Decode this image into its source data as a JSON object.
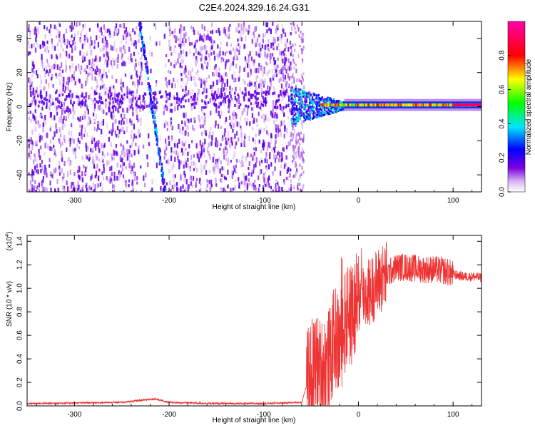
{
  "figure": {
    "title": "C2E4.2024.329.16.24.G31"
  },
  "chart_data": [
    {
      "type": "heatmap",
      "xlabel": "Height of straight line (km)",
      "ylabel": "Frequency (Hz)",
      "xlim": [
        -350,
        130
      ],
      "ylim": [
        -50,
        50
      ],
      "xticks": [
        -300,
        -200,
        -100,
        0,
        100
      ],
      "yticks": [
        -40,
        -20,
        0,
        20,
        40
      ],
      "colorbar": {
        "label": "Normalized spectral amplitude",
        "range": [
          0,
          1
        ],
        "ticks": [
          "0.0",
          "0.2",
          "0.4",
          "0.6",
          "0.8"
        ],
        "colors": [
          "#ffffff",
          "#7b00e0",
          "#0000ff",
          "#00e5ff",
          "#00ff00",
          "#ffff00",
          "#ff0000",
          "#ff00aa"
        ]
      },
      "features": [
        {
          "x_range": [
            -350,
            -72
          ],
          "y_range": [
            -50,
            50
          ],
          "amplitude": 0.15
        },
        {
          "x_range": [
            -72,
            130
          ],
          "y_center": 1,
          "amplitude": 0.9
        },
        {
          "x_range": [
            -235,
            -205
          ],
          "y_range": [
            50,
            -50
          ],
          "amplitude": 0.35
        }
      ]
    },
    {
      "type": "line",
      "xlabel": "Height of straight line (km)",
      "ylabel": "SNR (10 * v/v)",
      "y_multiplier": "(x10",
      "y_multiplier_exp": "4",
      "xlim": [
        -350,
        130
      ],
      "ylim": [
        0,
        1.45
      ],
      "xticks": [
        -300,
        -200,
        -100,
        0,
        100
      ],
      "yticks": [
        "0.0",
        "0.2",
        "0.4",
        "0.6",
        "0.8",
        "1.0",
        "1.2",
        "1.4"
      ],
      "series": [
        {
          "color": "#ee3333",
          "x": [
            -350,
            -300,
            -250,
            -215,
            -200,
            -150,
            -100,
            -60,
            -50,
            -45,
            -40,
            -35,
            -30,
            -25,
            -20,
            -15,
            -10,
            -5,
            0,
            5,
            10,
            20,
            30,
            40,
            50,
            60,
            70,
            80,
            90,
            100,
            110,
            120,
            130
          ],
          "y": [
            0.02,
            0.025,
            0.03,
            0.06,
            0.03,
            0.02,
            0.02,
            0.03,
            0.3,
            0.35,
            0.3,
            0.35,
            0.4,
            0.6,
            0.5,
            0.7,
            0.75,
            0.8,
            0.9,
            0.95,
            0.95,
            1.05,
            1.12,
            1.18,
            1.18,
            1.17,
            1.16,
            1.16,
            1.15,
            1.12,
            1.1,
            1.1,
            1.09
          ]
        }
      ]
    }
  ]
}
